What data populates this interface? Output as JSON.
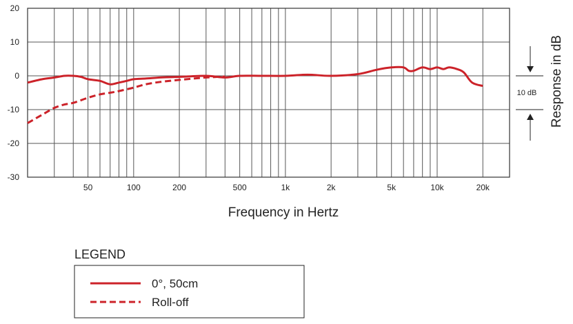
{
  "chart_data": {
    "type": "line",
    "xlabel": "Frequency in Hertz",
    "ylabel": "Response in dB",
    "x_scale": "log",
    "xlim": [
      20,
      30000
    ],
    "ylim": [
      -30,
      20
    ],
    "yticks": [
      20,
      10,
      0,
      -10,
      -20,
      -30
    ],
    "xticks": [
      {
        "value": 50,
        "label": "50"
      },
      {
        "value": 100,
        "label": "100"
      },
      {
        "value": 200,
        "label": "200"
      },
      {
        "value": 500,
        "label": "500"
      },
      {
        "value": 1000,
        "label": "1k"
      },
      {
        "value": 2000,
        "label": "2k"
      },
      {
        "value": 5000,
        "label": "5k"
      },
      {
        "value": 10000,
        "label": "10k"
      },
      {
        "value": 20000,
        "label": "20k"
      }
    ],
    "grid": true,
    "scale_reference": "10 dB",
    "legend": {
      "title": "LEGEND",
      "placement": "bottom-left"
    },
    "series": [
      {
        "name": "0°, 50cm",
        "style": "solid",
        "color": "#cc2229",
        "x": [
          20,
          25,
          30,
          35,
          40,
          45,
          50,
          60,
          70,
          80,
          90,
          100,
          120,
          150,
          200,
          300,
          400,
          500,
          700,
          1000,
          1300,
          1500,
          2000,
          3000,
          4000,
          5000,
          6000,
          6500,
          7000,
          8000,
          9000,
          10000,
          11000,
          12000,
          13500,
          15000,
          17000,
          20000
        ],
        "values": [
          -2,
          -1,
          -0.5,
          0,
          0,
          -0.3,
          -1,
          -1.5,
          -2.5,
          -2,
          -1.5,
          -1,
          -0.8,
          -0.5,
          -0.3,
          0,
          -0.5,
          0,
          0,
          0,
          0.3,
          0.3,
          0,
          0.5,
          1.8,
          2.5,
          2.5,
          1.5,
          1.5,
          2.5,
          2,
          2.5,
          2,
          2.5,
          2,
          1,
          -2,
          -3
        ]
      },
      {
        "name": "Roll-off",
        "style": "dashed",
        "color": "#cc2229",
        "x": [
          20,
          25,
          30,
          35,
          40,
          50,
          60,
          70,
          80,
          100,
          120,
          150,
          200,
          250,
          300,
          400
        ],
        "values": [
          -14,
          -11.5,
          -9.5,
          -8.5,
          -8,
          -6.5,
          -5.5,
          -5,
          -4.5,
          -3.5,
          -2.5,
          -1.8,
          -1.2,
          -0.8,
          -0.5,
          -0.2
        ]
      }
    ]
  }
}
